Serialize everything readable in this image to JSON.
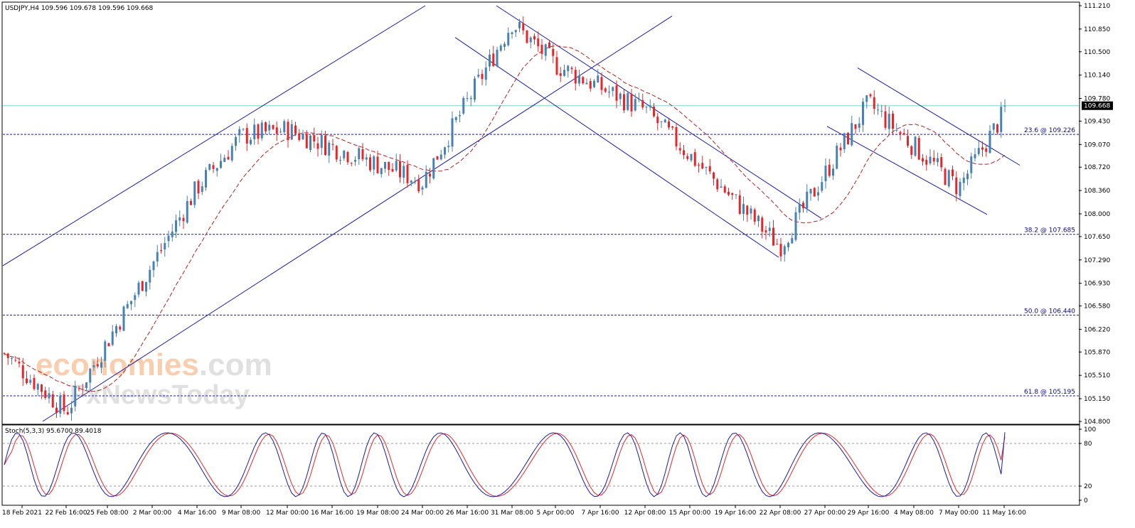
{
  "header": {
    "symbol_info": "USDJPY,H4  109.596 109.678 109.596 109.668"
  },
  "watermark": {
    "line1_a": "economies",
    "line1_b": ".com",
    "line2": "FxNewsToday"
  },
  "current_price": "109.668",
  "colors": {
    "bull": "#4682b4",
    "bear": "#e8262a",
    "line": "#1a1aa8",
    "ma": "#b22222",
    "stoch_main": "#1a1aa8",
    "stoch_signal": "#e8262a",
    "bid_line": "#7fd4d4"
  },
  "chart_data": [
    {
      "type": "candlestick",
      "symbol": "USDJPY",
      "timeframe": "H4",
      "ylim": [
        104.8,
        111.21
      ],
      "y_ticks": [
        "111.210",
        "110.850",
        "110.500",
        "110.140",
        "109.780",
        "109.430",
        "109.070",
        "108.720",
        "108.360",
        "108.000",
        "107.650",
        "107.290",
        "106.930",
        "106.580",
        "106.220",
        "105.870",
        "105.510",
        "105.150",
        "104.800"
      ],
      "x_ticks": [
        "18 Feb 2021",
        "22 Feb 16:00",
        "25 Feb 08:00",
        "2 Mar 00:00",
        "4 Mar 16:00",
        "9 Mar 08:00",
        "12 Mar 00:00",
        "16 Mar 16:00",
        "19 Mar 08:00",
        "24 Mar 00:00",
        "26 Mar 16:00",
        "31 Mar 08:00",
        "5 Apr 00:00",
        "7 Apr 16:00",
        "12 Apr 08:00",
        "15 Apr 00:00",
        "19 Apr 16:00",
        "22 Apr 08:00",
        "27 Apr 00:00",
        "29 Apr 16:00",
        "4 May 08:00",
        "7 May 00:00",
        "11 May 16:00"
      ],
      "key_points": [
        {
          "t": "18 Feb 2021",
          "price": 105.85
        },
        {
          "t": "22 Feb 16:00",
          "price": 104.95
        },
        {
          "t": "4 Mar 16:00",
          "price": 108.4
        },
        {
          "t": "9 Mar 08:00",
          "price": 109.2
        },
        {
          "t": "12 Mar 00:00",
          "price": 109.3
        },
        {
          "t": "24 Mar 00:00",
          "price": 108.5
        },
        {
          "t": "31 Mar 08:00",
          "price": 110.95
        },
        {
          "t": "5 Apr 00:00",
          "price": 110.3
        },
        {
          "t": "12 Apr 08:00",
          "price": 109.6
        },
        {
          "t": "22 Apr 08:00",
          "price": 107.5
        },
        {
          "t": "29 Apr 16:00",
          "price": 109.7
        },
        {
          "t": "7 May 00:00",
          "price": 108.4
        },
        {
          "t": "11 May 16:00",
          "price": 109.668
        }
      ],
      "fibonacci_levels": [
        {
          "label": "23.6 @ 109.226",
          "value": 109.226
        },
        {
          "label": "38.2 @ 107.685",
          "value": 107.685
        },
        {
          "label": "50.0 @ 106.440",
          "value": 106.44
        },
        {
          "label": "61.8 @ 105.195",
          "value": 105.195
        }
      ]
    },
    {
      "type": "line",
      "indicator_label": "Stoch(5,3,3) 95.6700 89.4018",
      "ylim": [
        0,
        100
      ],
      "y_ticks": [
        "100",
        "80",
        "20",
        "0"
      ],
      "levels": [
        80,
        20
      ],
      "series": [
        {
          "name": "main",
          "last": 95.67
        },
        {
          "name": "signal",
          "last": 89.4018
        }
      ]
    }
  ]
}
